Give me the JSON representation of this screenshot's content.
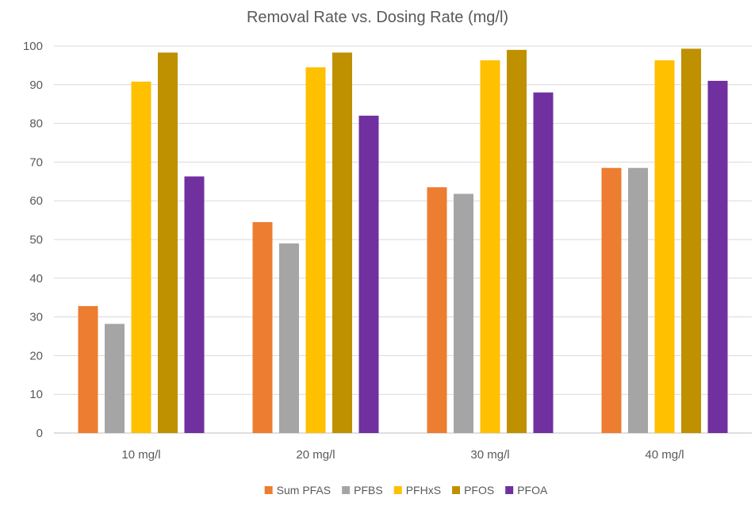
{
  "chart_data": {
    "type": "bar",
    "title": "Removal Rate vs. Dosing Rate (mg/l)",
    "xlabel": "",
    "ylabel": "",
    "categories": [
      "10 mg/l",
      "20 mg/l",
      "30 mg/l",
      "40 mg/l"
    ],
    "ylim": [
      0,
      100
    ],
    "yticks": [
      0,
      10,
      20,
      30,
      40,
      50,
      60,
      70,
      80,
      90,
      100
    ],
    "grid": true,
    "legend_position": "bottom",
    "series": [
      {
        "name": "Sum PFAS",
        "color": "#ED7D31",
        "values": [
          32.8,
          54.5,
          63.5,
          68.5
        ]
      },
      {
        "name": "PFBS",
        "color": "#A5A5A5",
        "values": [
          28.2,
          49.0,
          61.8,
          68.5
        ]
      },
      {
        "name": "PFHxS",
        "color": "#FFC000",
        "values": [
          90.8,
          94.5,
          96.3,
          96.3
        ]
      },
      {
        "name": "PFOS",
        "color": "#BF9000",
        "values": [
          98.3,
          98.3,
          99.0,
          99.3
        ]
      },
      {
        "name": "PFOA",
        "color": "#7030A0",
        "values": [
          66.3,
          82.0,
          88.0,
          91.0
        ]
      }
    ]
  }
}
